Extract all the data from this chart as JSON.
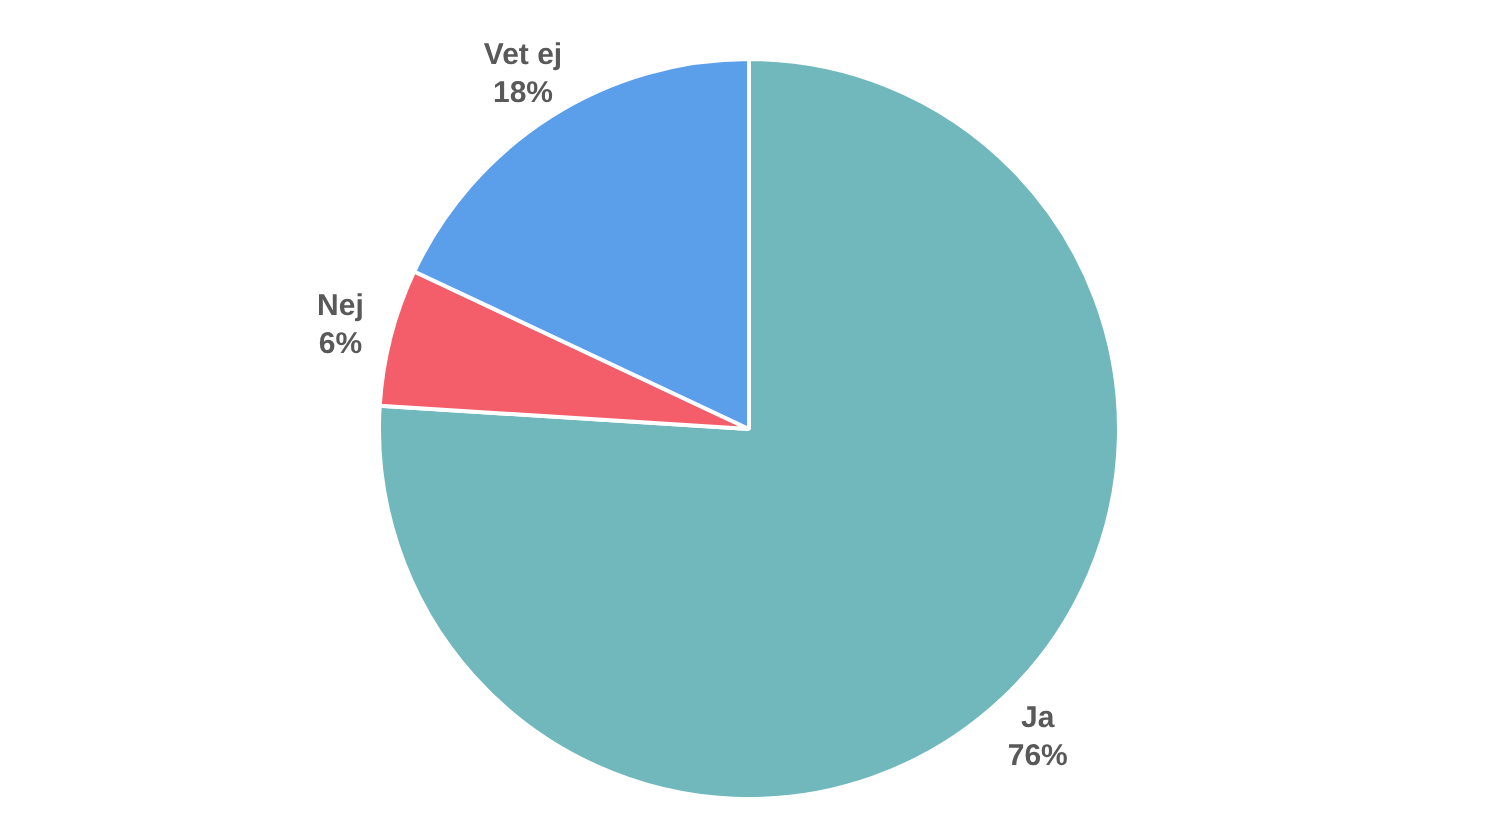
{
  "chart_data": {
    "type": "pie",
    "categories": [
      "Ja",
      "Nej",
      "Vet ej"
    ],
    "values": [
      76,
      6,
      18
    ],
    "colors": [
      "#70b8bb",
      "#f45d6a",
      "#5b9fea"
    ],
    "value_labels": [
      "76%",
      "6%",
      "18%"
    ]
  }
}
